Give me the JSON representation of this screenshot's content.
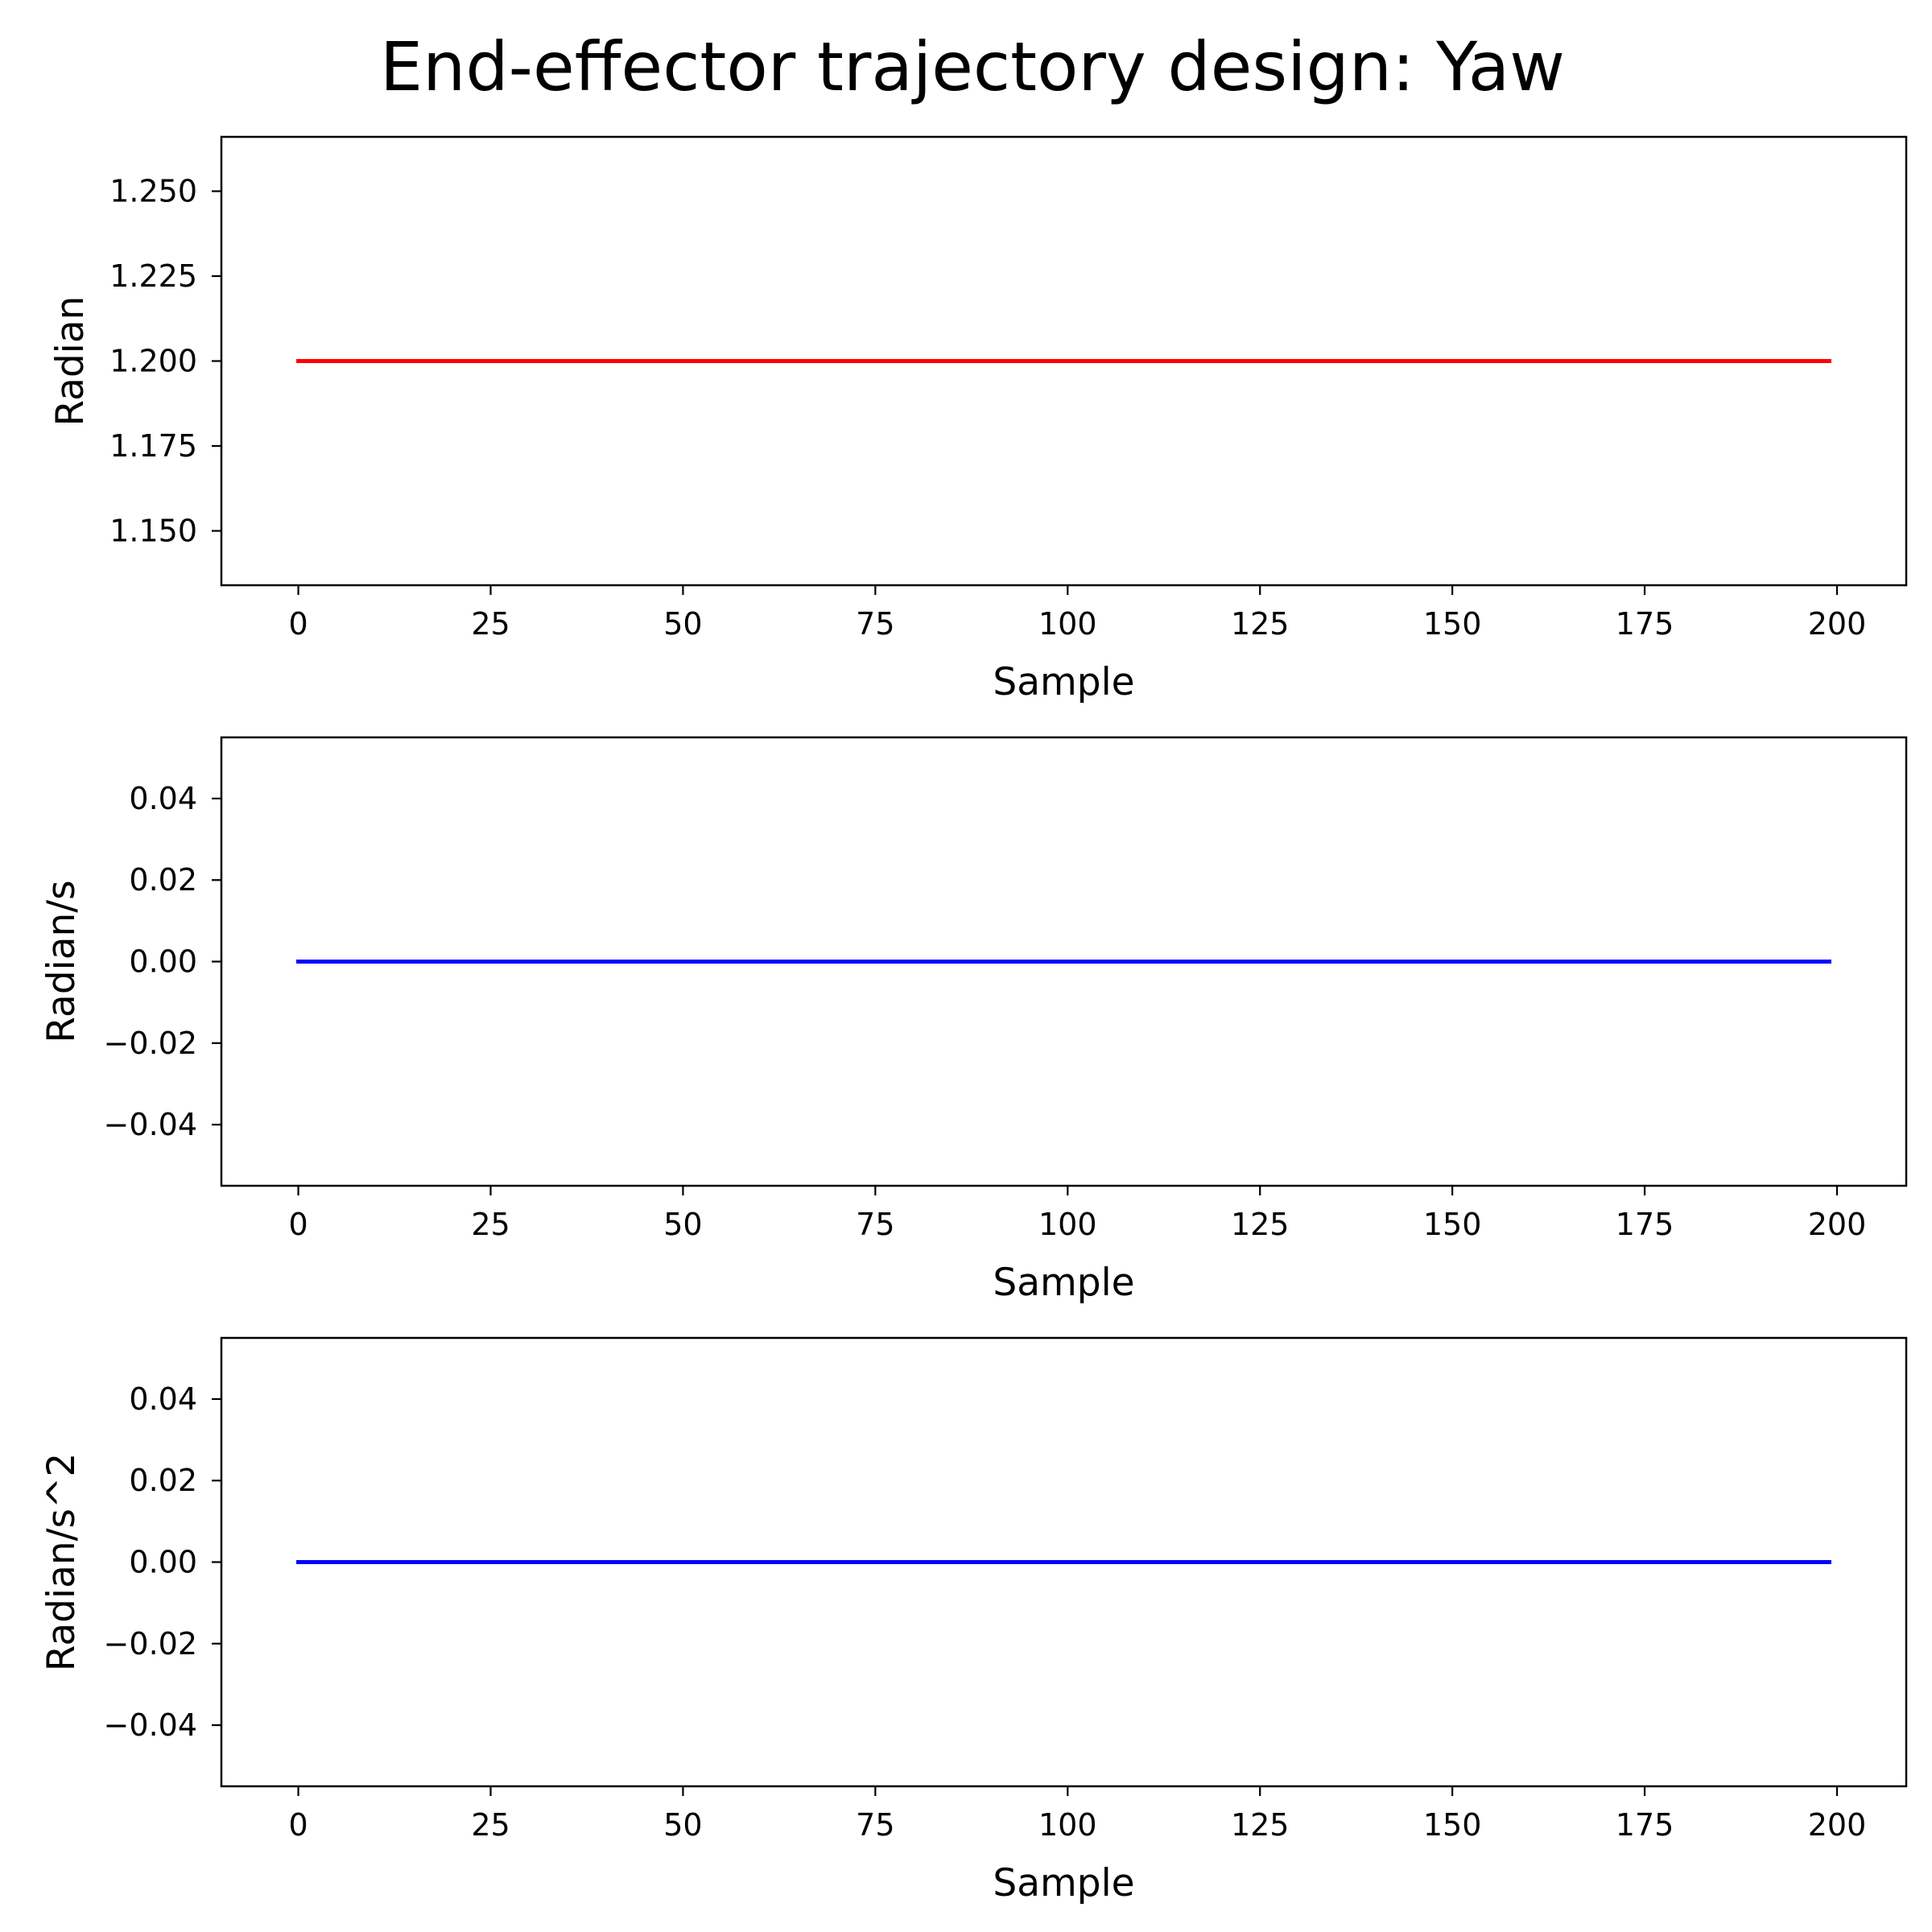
{
  "figure": {
    "title": "End-effector trajectory design: Yaw"
  },
  "chart_data": [
    {
      "type": "line",
      "xlabel": "Sample",
      "ylabel": "Radian",
      "xlim": [
        -10,
        209
      ],
      "ylim": [
        1.134,
        1.266
      ],
      "xticks": [
        0,
        25,
        50,
        75,
        100,
        125,
        150,
        175,
        200
      ],
      "xtick_labels": [
        "0",
        "25",
        "50",
        "75",
        "100",
        "125",
        "150",
        "175",
        "200"
      ],
      "yticks": [
        1.15,
        1.175,
        1.2,
        1.225,
        1.25
      ],
      "ytick_labels": [
        "1.150",
        "1.175",
        "1.200",
        "1.225",
        "1.250"
      ],
      "grid": false,
      "series": [
        {
          "color": "#ff0000",
          "x": [
            0,
            199
          ],
          "y": [
            1.2,
            1.2
          ]
        }
      ]
    },
    {
      "type": "line",
      "xlabel": "Sample",
      "ylabel": "Radian/s",
      "xlim": [
        -10,
        209
      ],
      "ylim": [
        -0.055,
        0.055
      ],
      "xticks": [
        0,
        25,
        50,
        75,
        100,
        125,
        150,
        175,
        200
      ],
      "xtick_labels": [
        "0",
        "25",
        "50",
        "75",
        "100",
        "125",
        "150",
        "175",
        "200"
      ],
      "yticks": [
        -0.04,
        -0.02,
        0.0,
        0.02,
        0.04
      ],
      "ytick_labels": [
        "−0.04",
        "−0.02",
        "0.00",
        "0.02",
        "0.04"
      ],
      "grid": false,
      "series": [
        {
          "color": "#0000ff",
          "x": [
            0,
            199
          ],
          "y": [
            0,
            0
          ]
        }
      ]
    },
    {
      "type": "line",
      "xlabel": "Sample",
      "ylabel": "Radian/s^2",
      "xlim": [
        -10,
        209
      ],
      "ylim": [
        -0.055,
        0.055
      ],
      "xticks": [
        0,
        25,
        50,
        75,
        100,
        125,
        150,
        175,
        200
      ],
      "xtick_labels": [
        "0",
        "25",
        "50",
        "75",
        "100",
        "125",
        "150",
        "175",
        "200"
      ],
      "yticks": [
        -0.04,
        -0.02,
        0.0,
        0.02,
        0.04
      ],
      "ytick_labels": [
        "−0.04",
        "−0.02",
        "0.00",
        "0.02",
        "0.04"
      ],
      "grid": false,
      "series": [
        {
          "color": "#0000ff",
          "x": [
            0,
            199
          ],
          "y": [
            0,
            0
          ]
        }
      ]
    }
  ]
}
